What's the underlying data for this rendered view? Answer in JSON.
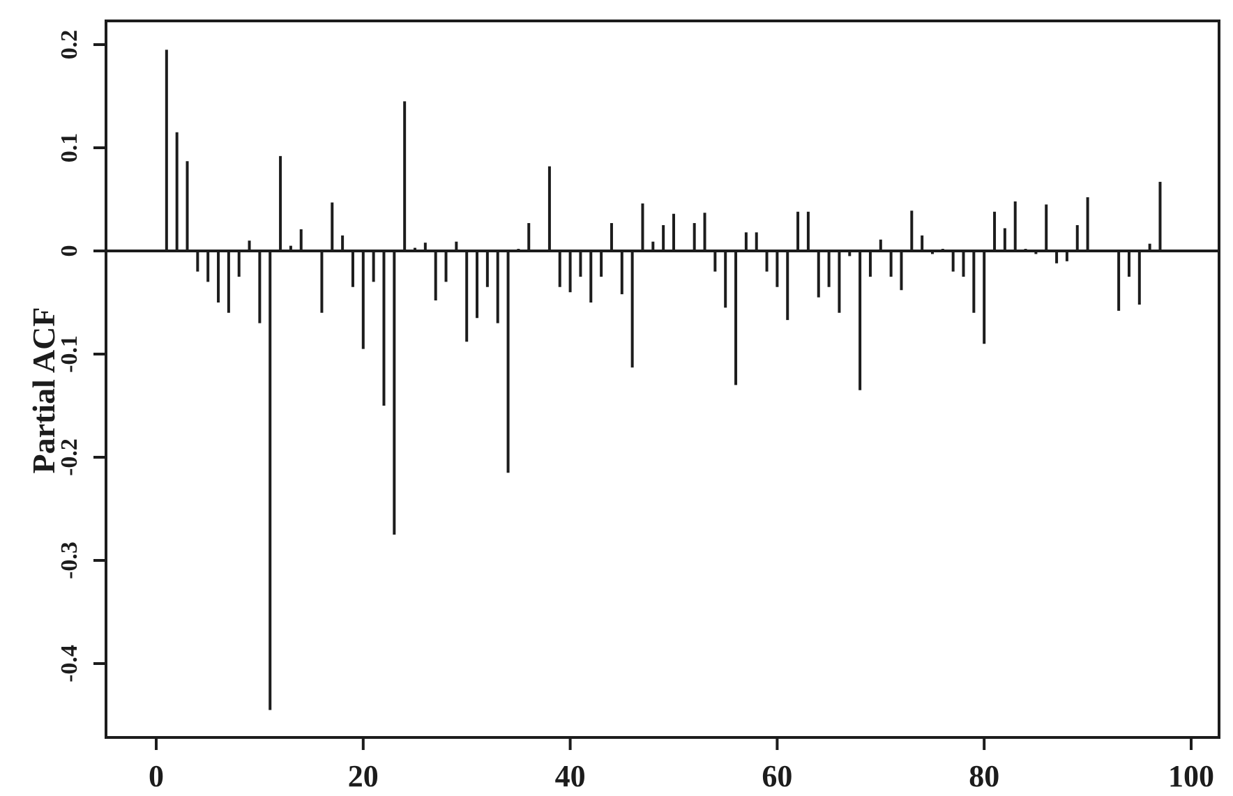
{
  "chart_data": {
    "type": "bar",
    "title": "",
    "xlabel": "",
    "ylabel": "Partial ACF",
    "xlim": [
      0,
      100
    ],
    "ylim": [
      -0.47,
      0.22
    ],
    "grid": false,
    "x_ticks": [
      "0",
      "20",
      "40",
      "60",
      "80",
      "100"
    ],
    "y_ticks": [
      "0.2",
      "0.1",
      "0",
      "-0.1",
      "-0.2",
      "-0.3",
      "-0.4"
    ],
    "colors": {
      "bars": "#1c1c1c",
      "axis": "#1c1c1c",
      "background": "#ffffff"
    },
    "series": [
      {
        "lags": [
          1,
          2,
          3,
          4,
          5,
          6,
          7,
          8,
          9,
          10,
          11,
          12,
          13,
          14,
          15,
          16,
          17,
          18,
          19,
          20,
          21,
          22,
          23,
          24,
          25,
          26,
          27,
          28,
          29,
          30,
          31,
          32,
          33,
          34,
          35,
          36,
          37,
          38,
          39,
          40,
          41,
          42,
          43,
          44,
          45,
          46,
          47,
          48,
          49,
          50,
          51,
          52,
          53,
          54,
          55,
          56,
          57,
          58,
          59,
          60,
          61,
          62,
          63,
          64,
          65,
          66,
          67,
          68,
          69,
          70,
          71,
          72,
          73,
          74,
          75,
          76,
          77,
          78,
          79,
          80,
          81,
          82,
          83,
          84,
          85,
          86,
          87,
          88,
          89,
          90,
          91,
          92,
          93,
          94,
          95,
          96,
          97,
          98,
          99,
          100
        ],
        "values": [
          0.195,
          0.115,
          0.087,
          -0.02,
          -0.03,
          -0.05,
          -0.06,
          -0.025,
          0.01,
          -0.07,
          -0.445,
          0.092,
          0.005,
          0.021,
          0,
          -0.06,
          0.047,
          0.015,
          -0.035,
          -0.095,
          -0.03,
          -0.15,
          -0.275,
          0.145,
          0.003,
          0.008,
          -0.048,
          -0.03,
          0.009,
          -0.088,
          -0.065,
          -0.035,
          -0.07,
          -0.215,
          0.002,
          0.027,
          -0.001,
          0.082,
          -0.035,
          -0.04,
          -0.025,
          -0.05,
          -0.025,
          0.027,
          -0.042,
          -0.113,
          0.046,
          0.009,
          0.025,
          0.036,
          0.001,
          0.027,
          0.037,
          -0.02,
          -0.055,
          -0.13,
          0.018,
          0.018,
          -0.02,
          -0.035,
          -0.067,
          0.038,
          0.038,
          -0.045,
          -0.035,
          -0.06,
          -0.005,
          -0.135,
          -0.025,
          0.011,
          -0.025,
          -0.038,
          0.039,
          0.015,
          -0.003,
          0.002,
          -0.02,
          -0.025,
          -0.06,
          -0.09,
          0.038,
          0.022,
          0.048,
          0.002,
          -0.003,
          0.045,
          -0.012,
          -0.01,
          0.025,
          0.052,
          0.001,
          0.001,
          -0.058,
          -0.025,
          -0.052,
          0.007,
          0.067,
          0,
          0,
          0
        ]
      }
    ]
  }
}
